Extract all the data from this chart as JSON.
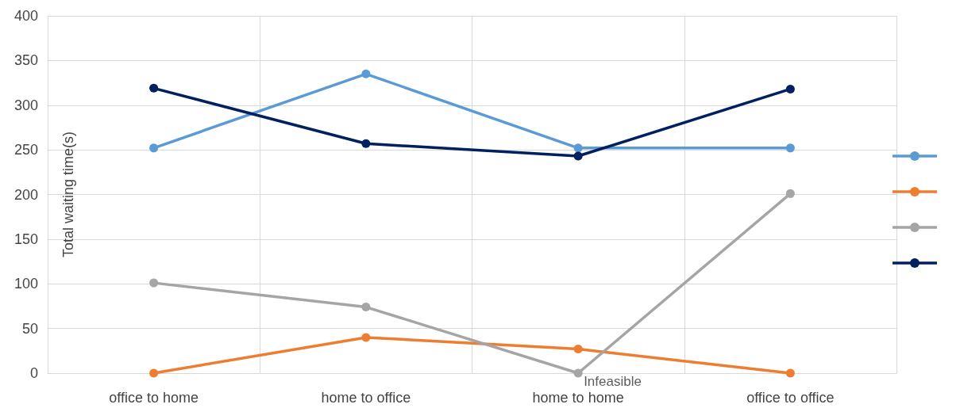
{
  "chart_data": {
    "type": "line",
    "ylabel": "Total waiting time(s)",
    "categories": [
      "office to home",
      "home to office",
      "home to home",
      "office to office"
    ],
    "series": [
      {
        "color": "#5b9bd5",
        "values": [
          252,
          335,
          252,
          252
        ]
      },
      {
        "color": "#ed7d31",
        "values": [
          0,
          40,
          27,
          0
        ]
      },
      {
        "color": "#a5a5a5",
        "values": [
          101,
          74,
          0,
          201
        ]
      },
      {
        "color": "#002060",
        "values": [
          319,
          257,
          243,
          318
        ]
      }
    ],
    "ylim": [
      0,
      400
    ],
    "yticks": [
      0,
      50,
      100,
      150,
      200,
      250,
      300,
      350,
      400
    ],
    "grid": true,
    "marker": "circle",
    "line_style": "solid",
    "annotations": [
      {
        "text": "Infeasible",
        "x": "home to home",
        "y": 0
      }
    ]
  }
}
